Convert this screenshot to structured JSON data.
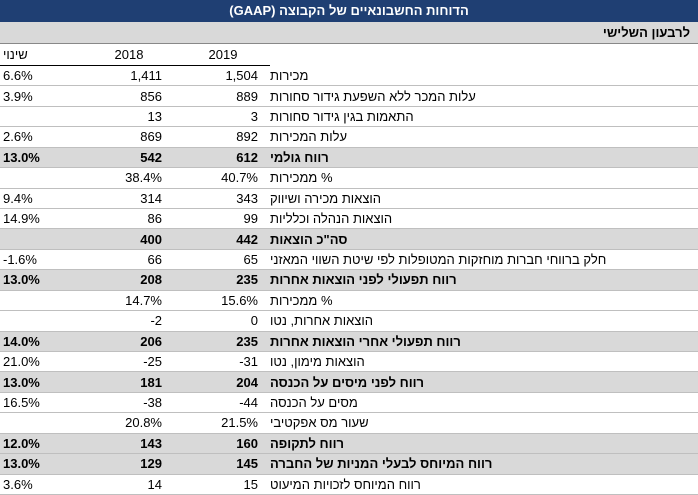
{
  "header": {
    "title": "הדוחות החשבונאיים של הקבוצה (GAAP)",
    "subtitle": "לרבעון השלישי",
    "columns": {
      "change": "שינוי",
      "y2018": "2018",
      "y2019": "2019"
    }
  },
  "table": {
    "rows": [
      {
        "label": "מכירות",
        "y2019": "1,504",
        "y2018": "1,411",
        "change": "6.6%"
      },
      {
        "label": "עלות המכר ללא השפעת גידור סחורות",
        "y2019": "889",
        "y2018": "856",
        "change": "3.9%"
      },
      {
        "label": "התאמות בגין גידור סחורות",
        "y2019": "3",
        "y2018": "13"
      },
      {
        "label": "עלות המכירות",
        "y2019": "892",
        "y2018": "869",
        "change": "2.6%"
      },
      {
        "label": "רווח גולמי",
        "y2019": "612",
        "y2018": "542",
        "change": "13.0%",
        "bold": true
      },
      {
        "label": "% ממכירות",
        "y2019": "40.7%",
        "y2018": "38.4%"
      },
      {
        "label": "הוצאות מכירה ושיווק",
        "y2019": "343",
        "y2018": "314",
        "change": "9.4%"
      },
      {
        "label": "הוצאות הנהלה וכלליות",
        "y2019": "99",
        "y2018": "86",
        "change": "14.9%"
      },
      {
        "label": "סה\"כ הוצאות",
        "y2019": "442",
        "y2018": "400",
        "bold": true
      },
      {
        "label": "חלק ברווחי חברות מוחזקות המטופלות לפי שיטת השווי המאזני",
        "y2019": "65",
        "y2018": "66",
        "change": "-1.6%"
      },
      {
        "label": "רווח תפעולי לפני הוצאות אחרות",
        "y2019": "235",
        "y2018": "208",
        "change": "13.0%",
        "bold": true
      },
      {
        "label": "% ממכירות",
        "y2019": "15.6%",
        "y2018": "14.7%"
      },
      {
        "label": "הוצאות אחרות, נטו",
        "y2019": "0",
        "y2018": "-2"
      },
      {
        "label": "רווח תפעולי אחרי הוצאות אחרות",
        "y2019": "235",
        "y2018": "206",
        "change": "14.0%",
        "bold": true
      },
      {
        "label": "הוצאות מימון, נטו",
        "y2019": "-31",
        "y2018": "-25",
        "change": "21.0%"
      },
      {
        "label": "רווח לפני מיסים על הכנסה",
        "y2019": "204",
        "y2018": "181",
        "change": "13.0%",
        "bold": true
      },
      {
        "label": "מסים על הכנסה",
        "y2019": "-44",
        "y2018": "-38",
        "change": "16.5%"
      },
      {
        "label": "שעור מס אפקטיבי",
        "y2019": "21.5%",
        "y2018": "20.8%"
      },
      {
        "label": "רווח לתקופה",
        "y2019": "160",
        "y2018": "143",
        "change": "12.0%",
        "bold": true
      },
      {
        "label": "רווח המיוחס לבעלי המניות של החברה",
        "y2019": "145",
        "y2018": "129",
        "change": "13.0%",
        "bold": true
      },
      {
        "label": "רווח המיוחס לזכויות המיעוט",
        "y2019": "15",
        "y2018": "14",
        "change": "3.6%"
      }
    ]
  }
}
